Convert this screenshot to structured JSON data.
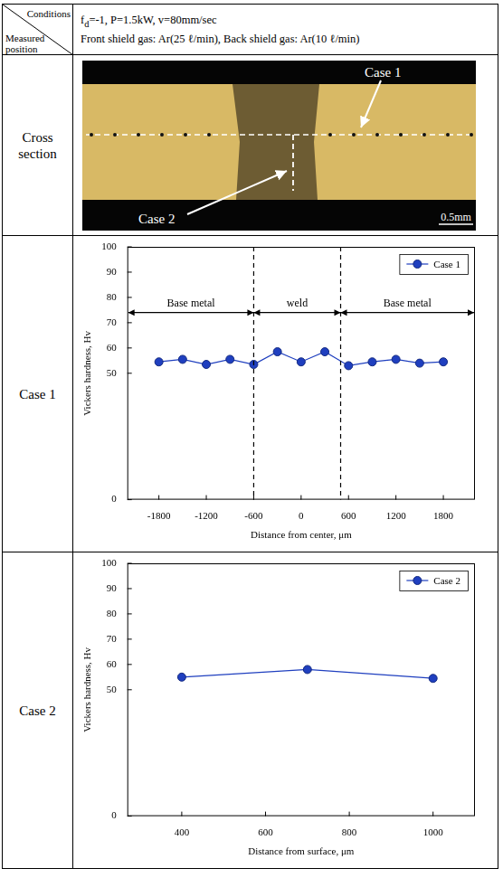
{
  "table": {
    "header": {
      "corner_top": "Conditions",
      "corner_bottom": "Measured position",
      "conditions": [
        [
          {
            "text": "f"
          },
          {
            "text": "d",
            "sub": true
          },
          {
            "text": "=-1,  P=1.5kW,  v=80mm/sec"
          }
        ],
        [
          {
            "text": "Front shield gas: Ar(25 ℓ/min), Back shield gas: Ar(10 ℓ/min)"
          }
        ]
      ]
    },
    "rows": [
      {
        "label": "Cross section",
        "annotations": [
          "Case 1",
          "Case 2"
        ],
        "scale_bar": "0.5mm"
      },
      {
        "label": "Case 1"
      },
      {
        "label": "Case 2"
      }
    ]
  },
  "chart_data": [
    {
      "type": "line",
      "x_label": "Distance from center, μm",
      "y_label": "Vickers hardness, Hv",
      "x": [
        -1800,
        -1500,
        -1200,
        -900,
        -600,
        -300,
        0,
        300,
        600,
        900,
        1200,
        1500,
        1800
      ],
      "series": [
        {
          "name": "Case 1",
          "color": "#1f3fbf",
          "marker": "circle",
          "line_style": "solid",
          "values": [
            54.5,
            55.5,
            53.5,
            55.5,
            53.5,
            58.5,
            54.5,
            58.5,
            53,
            54.5,
            55.5,
            54,
            54.5
          ]
        }
      ],
      "xlim": [
        -2200,
        2200
      ],
      "xticks": [
        -1800,
        -1200,
        -600,
        0,
        600,
        1200,
        1800
      ],
      "ylim": [
        0,
        100
      ],
      "yticks": [
        0,
        50,
        60,
        70,
        80,
        90,
        100
      ],
      "grid": false,
      "legend": "upper right",
      "annotations": [
        {
          "label": "Base metal",
          "from": -2200,
          "to": -600
        },
        {
          "label": "weld",
          "from": -600,
          "to": 500
        },
        {
          "label": "Base metal",
          "from": 500,
          "to": 2200
        }
      ]
    },
    {
      "type": "line",
      "x_label": "Distance from surface, μm",
      "y_label": "Vickers hardness, Hv",
      "x": [
        400,
        700,
        1000
      ],
      "series": [
        {
          "name": "Case 2",
          "color": "#1f3fbf",
          "marker": "circle",
          "line_style": "solid",
          "values": [
            55,
            58,
            54.5
          ]
        }
      ],
      "xlim": [
        270,
        1100
      ],
      "xticks": [
        400,
        600,
        800,
        1000
      ],
      "ylim": [
        0,
        100
      ],
      "yticks": [
        0,
        50,
        60,
        70,
        80,
        90,
        100
      ],
      "grid": false,
      "legend": "upper right"
    }
  ]
}
